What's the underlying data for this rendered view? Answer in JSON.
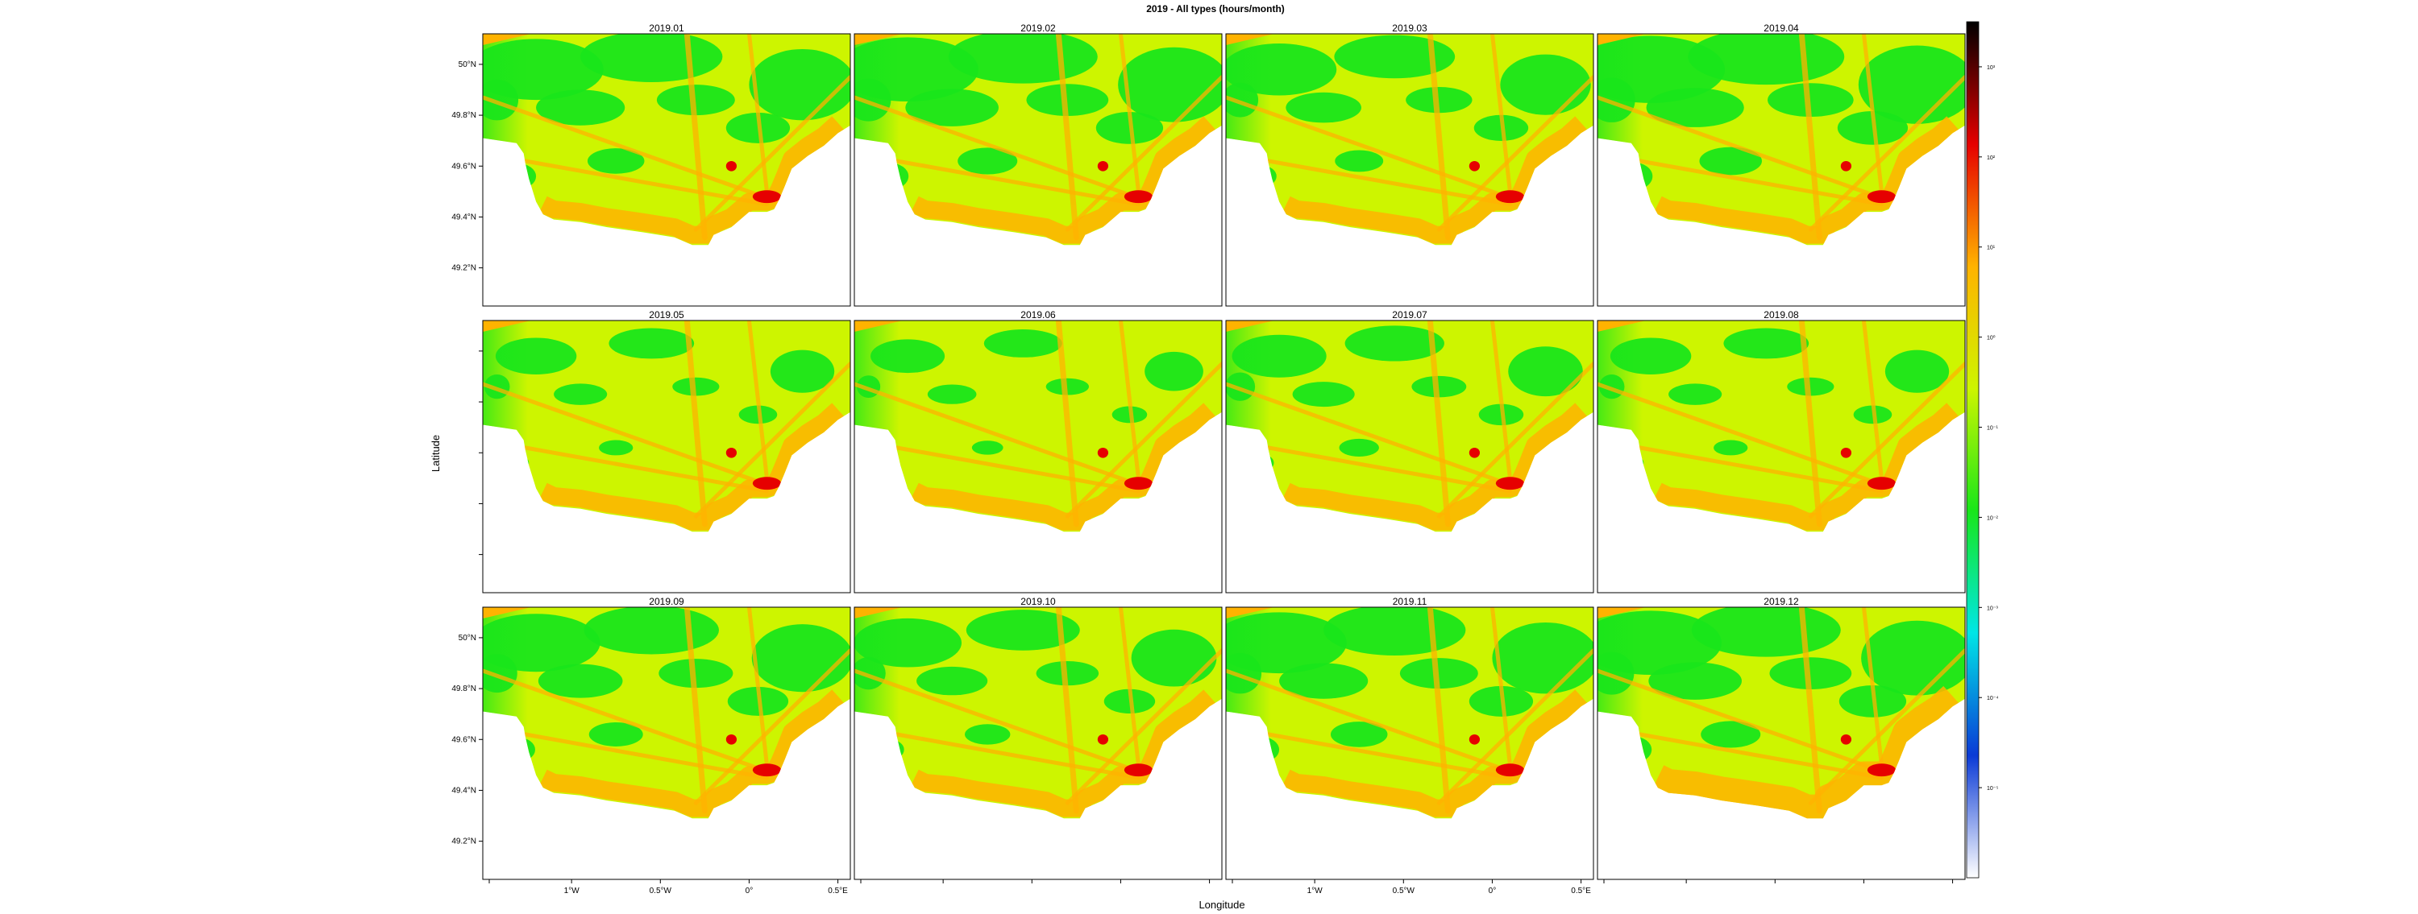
{
  "chart_data": {
    "type": "heatmap",
    "title": "2019 - All types (hours/month)",
    "xlabel": "Longitude",
    "ylabel": "Latitude",
    "panels": [
      "2019.01",
      "2019.02",
      "2019.03",
      "2019.04",
      "2019.05",
      "2019.06",
      "2019.07",
      "2019.08",
      "2019.09",
      "2019.10",
      "2019.11",
      "2019.12"
    ],
    "layout": {
      "rows": 3,
      "cols": 4
    },
    "xlim": [
      -1.5,
      0.57
    ],
    "ylim": [
      49.05,
      50.12
    ],
    "x_ticks": [
      {
        "value": -1.0,
        "label": "1°W"
      },
      {
        "value": -0.5,
        "label": "0.5°W"
      },
      {
        "value": 0.0,
        "label": "0°"
      },
      {
        "value": 0.5,
        "label": "0.5°E"
      }
    ],
    "y_ticks": [
      {
        "value": 50.0,
        "label": "50°N"
      },
      {
        "value": 49.8,
        "label": "49.8°N"
      },
      {
        "value": 49.6,
        "label": "49.6°N"
      },
      {
        "value": 49.4,
        "label": "49.4°N"
      },
      {
        "value": 49.2,
        "label": "49.2°N"
      }
    ],
    "colorbar": {
      "scale": "log",
      "colors": [
        "#ffffff",
        "#0a3ad6",
        "#00e6e6",
        "#19e61a",
        "#cdf500",
        "#ffb300",
        "#e60000",
        "#000000"
      ],
      "ticks": [
        {
          "exp": 3,
          "label": "10³"
        },
        {
          "exp": 2,
          "label": "10²"
        },
        {
          "exp": 1,
          "label": "10¹"
        },
        {
          "exp": 0,
          "label": "10⁰"
        },
        {
          "exp": -1,
          "label": "10⁻¹"
        },
        {
          "exp": -2,
          "label": "10⁻²"
        },
        {
          "exp": -3,
          "label": "10⁻³"
        },
        {
          "exp": -4,
          "label": "10⁻⁴"
        },
        {
          "exp": -5,
          "label": "10⁻⁵"
        }
      ],
      "range_exp": [
        -6,
        3.5
      ]
    },
    "grid": false
  },
  "colors": {
    "land": "#ffffff",
    "frame": "#000000",
    "sea_open": "#19e61a",
    "sea_moderate": "#cdf500",
    "sea_busy": "#ffb300",
    "sea_port": "#e60000",
    "north_corner": "#ffb300"
  }
}
